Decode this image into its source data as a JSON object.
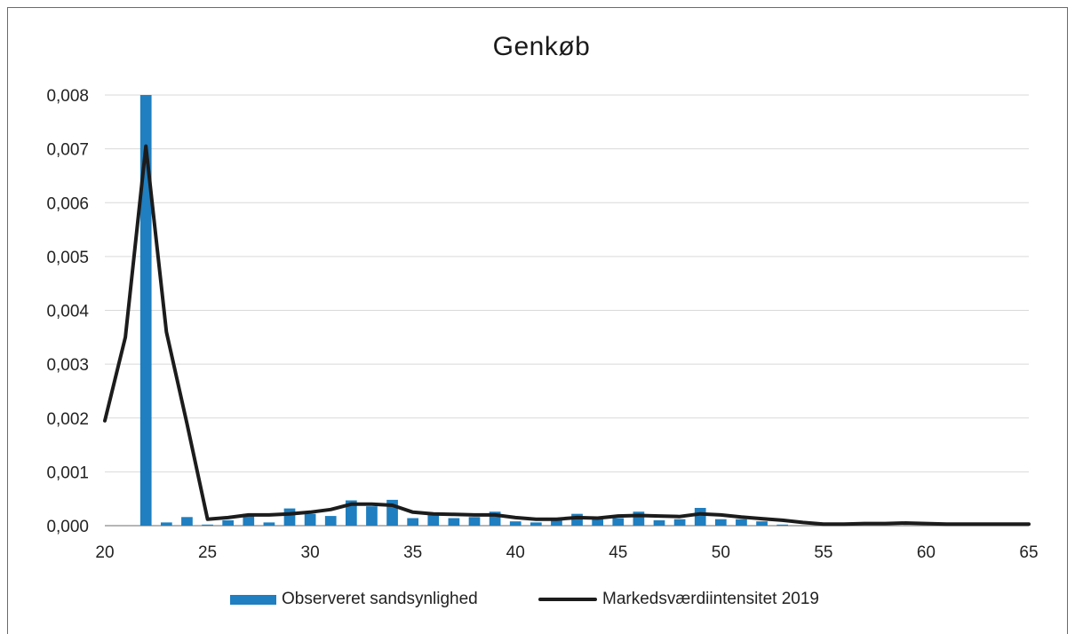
{
  "chart_data": {
    "type": "bar",
    "title": "Genkøb",
    "xlabel": "",
    "ylabel": "",
    "xlim": [
      20,
      65
    ],
    "ylim": [
      0,
      0.008
    ],
    "x_ticks": [
      "20",
      "25",
      "30",
      "35",
      "40",
      "45",
      "50",
      "55",
      "60",
      "65"
    ],
    "y_ticks": [
      "0,000",
      "0,001",
      "0,002",
      "0,003",
      "0,004",
      "0,005",
      "0,006",
      "0,007",
      "0,008"
    ],
    "grid": true,
    "legend_position": "bottom",
    "series": [
      {
        "name": "Observeret sandsynlighed",
        "type": "bar",
        "color": "#1f7fc0",
        "x": [
          22,
          23,
          24,
          25,
          26,
          27,
          28,
          29,
          30,
          31,
          32,
          33,
          34,
          35,
          36,
          37,
          38,
          39,
          40,
          41,
          42,
          43,
          44,
          45,
          46,
          47,
          48,
          49,
          50,
          51,
          52,
          53
        ],
        "values": [
          0.008,
          6e-05,
          0.00016,
          2e-05,
          0.0001,
          0.00022,
          6e-05,
          0.00032,
          0.00022,
          0.00018,
          0.00047,
          0.00036,
          0.00048,
          0.00014,
          0.0002,
          0.00014,
          0.00016,
          0.00026,
          8e-05,
          6e-05,
          0.0001,
          0.00022,
          0.00012,
          0.00014,
          0.00026,
          0.0001,
          0.00012,
          0.00033,
          0.00012,
          0.00012,
          8e-05,
          2e-05
        ]
      },
      {
        "name": "Markedsværdiintensitet 2019",
        "type": "line",
        "color": "#1c1c1c",
        "x": [
          20,
          21,
          22,
          23,
          24,
          25,
          26,
          27,
          28,
          29,
          30,
          31,
          32,
          33,
          34,
          35,
          36,
          37,
          38,
          39,
          40,
          41,
          42,
          43,
          44,
          45,
          46,
          47,
          48,
          49,
          50,
          51,
          52,
          53,
          54,
          55,
          56,
          57,
          58,
          59,
          60,
          61,
          62,
          63,
          64,
          65
        ],
        "values": [
          0.00195,
          0.0035,
          0.00705,
          0.0036,
          0.0019,
          0.00012,
          0.00015,
          0.0002,
          0.0002,
          0.00022,
          0.00025,
          0.0003,
          0.0004,
          0.0004,
          0.00038,
          0.00025,
          0.00022,
          0.00021,
          0.0002,
          0.0002,
          0.00015,
          0.00012,
          0.00012,
          0.00015,
          0.00014,
          0.00018,
          0.00019,
          0.00018,
          0.00017,
          0.00022,
          0.0002,
          0.00016,
          0.00013,
          0.0001,
          6e-05,
          3e-05,
          3e-05,
          4e-05,
          4e-05,
          5e-05,
          4e-05,
          3e-05,
          3e-05,
          3e-05,
          3e-05,
          3e-05
        ]
      }
    ]
  }
}
